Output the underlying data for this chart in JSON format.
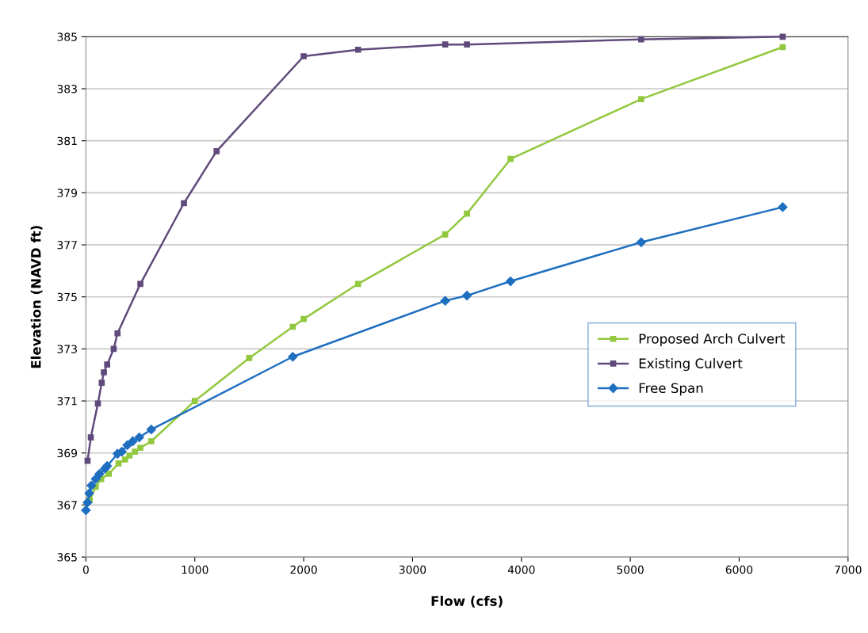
{
  "chart_data": {
    "type": "line",
    "xlabel": "Flow (cfs)",
    "ylabel": "Elevation (NAVD ft)",
    "xlim": [
      0,
      7000
    ],
    "xticks": [
      0,
      1000,
      2000,
      3000,
      4000,
      5000,
      6000,
      7000
    ],
    "ylim": [
      365,
      385
    ],
    "yticks": [
      365,
      367,
      369,
      371,
      373,
      375,
      377,
      379,
      381,
      383,
      385
    ],
    "grid": "y",
    "legend": "right",
    "line_style": "solid",
    "series": [
      {
        "name": "Proposed Arch Culvert",
        "color": "#92c83e",
        "marker": "square",
        "x": [
          35,
          90,
          140,
          210,
          300,
          360,
          400,
          450,
          500,
          600,
          1000,
          1500,
          1900,
          2000,
          2500,
          3300,
          3500,
          3900,
          5100,
          6400
        ],
        "values": [
          367.2,
          367.7,
          368.0,
          368.2,
          368.6,
          368.75,
          368.9,
          369.05,
          369.2,
          369.45,
          371.0,
          372.65,
          373.85,
          374.15,
          375.5,
          377.4,
          378.2,
          380.3,
          382.6,
          384.6
        ]
      },
      {
        "name": "Existing Culvert",
        "color": "#604a7b",
        "marker": "square",
        "x": [
          15,
          45,
          110,
          145,
          165,
          195,
          255,
          290,
          500,
          900,
          1200,
          2000,
          2500,
          3300,
          3500,
          5100,
          6400
        ],
        "values": [
          368.7,
          369.6,
          370.9,
          371.7,
          372.1,
          372.4,
          373.0,
          373.6,
          375.5,
          378.6,
          380.6,
          384.25,
          384.5,
          384.7,
          384.7,
          384.9,
          385.0
        ]
      },
      {
        "name": "Free Span",
        "color": "#1f6fc1",
        "marker": "diamond",
        "x": [
          0,
          15,
          30,
          50,
          90,
          125,
          175,
          195,
          290,
          330,
          380,
          430,
          490,
          600,
          1900,
          3300,
          3500,
          3900,
          5100,
          6400
        ],
        "values": [
          366.8,
          367.1,
          367.45,
          367.75,
          368.0,
          368.2,
          368.4,
          368.5,
          368.97,
          369.05,
          369.3,
          369.45,
          369.6,
          369.9,
          372.7,
          374.85,
          375.05,
          375.6,
          377.1,
          378.45
        ]
      }
    ]
  }
}
